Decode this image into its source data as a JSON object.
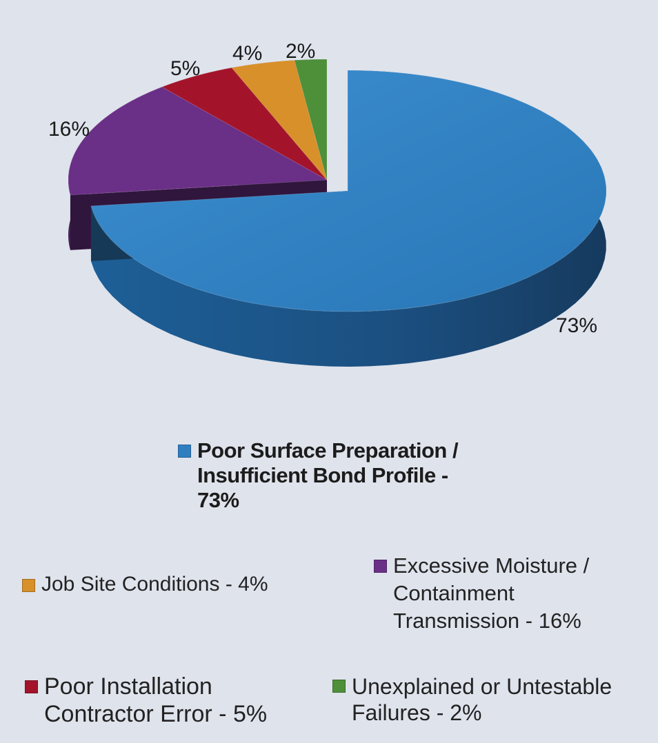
{
  "chart_data": {
    "type": "pie",
    "title": "",
    "slices": [
      {
        "label": "Poor Surface Preparation / Insufficient Bond Profile",
        "value": 73,
        "display": "73%",
        "color": "#2f7fc0"
      },
      {
        "label": "Excessive Moisture / Containment Transmission",
        "value": 16,
        "display": "16%",
        "color": "#6a2f87"
      },
      {
        "label": "Poor Installation Contractor Error",
        "value": 5,
        "display": "5%",
        "color": "#a3142a"
      },
      {
        "label": "Job Site Conditions",
        "value": 4,
        "display": "4%",
        "color": "#d8902a"
      },
      {
        "label": "Unexplained or Untestable Failures",
        "value": 2,
        "display": "2%",
        "color": "#4e8f3a"
      }
    ],
    "legend": {
      "main": "Poor Surface Preparation /\nInsufficient Bond Profile -\n73%",
      "job_site": "Job Site Conditions - 4%",
      "moisture": "Excessive Moisture /\nContainment\nTransmission - 16%",
      "installation": "Poor Installation\nContractor Error - 5%",
      "unexplained": "Unexplained or Untestable\nFailures - 2%"
    }
  }
}
